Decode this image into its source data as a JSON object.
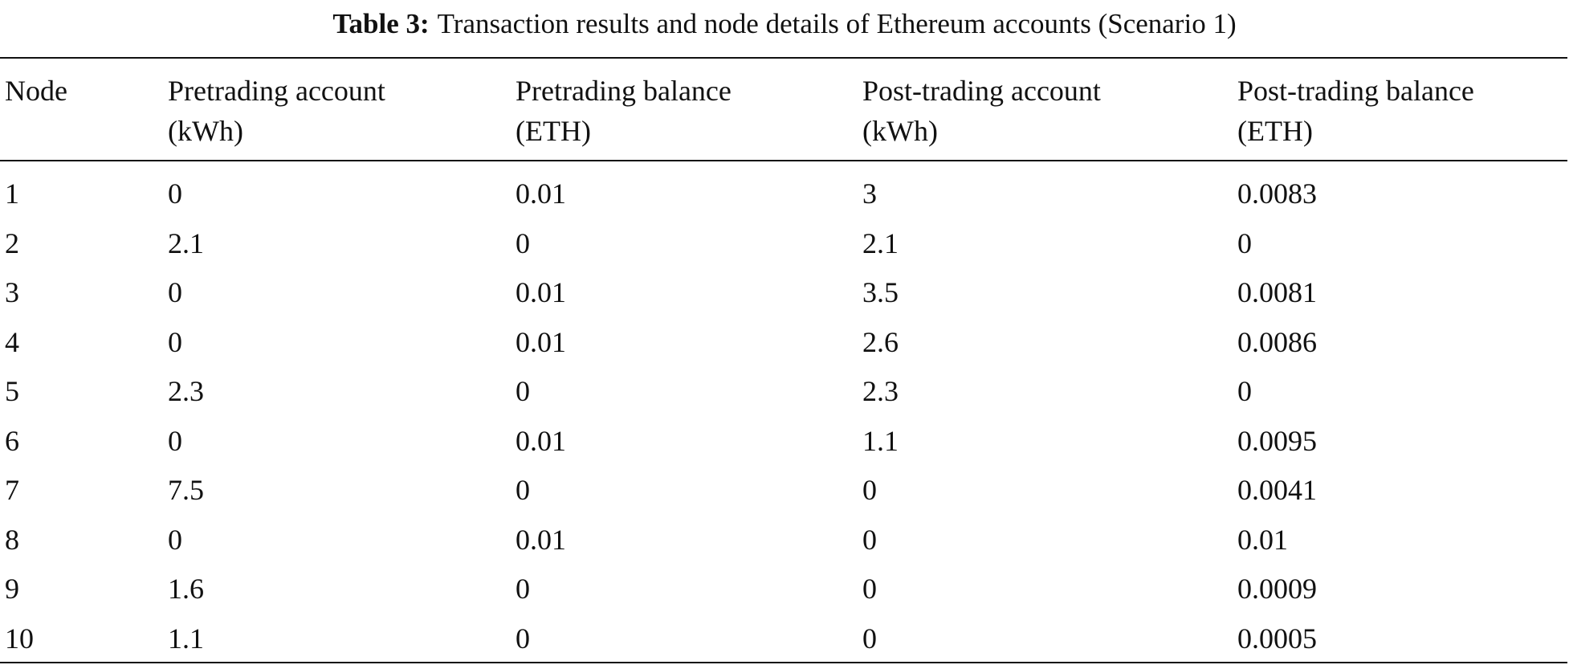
{
  "caption": {
    "label": "Table 3:",
    "text": "Transaction results and node details of Ethereum accounts (Scenario 1)"
  },
  "table": {
    "headers": [
      [
        "Node"
      ],
      [
        "Pretrading account",
        "(kWh)"
      ],
      [
        "Pretrading balance",
        "(ETH)"
      ],
      [
        "Post-trading account",
        "(kWh)"
      ],
      [
        "Post-trading balance",
        "(ETH)"
      ]
    ],
    "rows": [
      [
        "1",
        "0",
        "0.01",
        "3",
        "0.0083"
      ],
      [
        "2",
        "2.1",
        "0",
        "2.1",
        "0"
      ],
      [
        "3",
        "0",
        "0.01",
        "3.5",
        "0.0081"
      ],
      [
        "4",
        "0",
        "0.01",
        "2.6",
        "0.0086"
      ],
      [
        "5",
        "2.3",
        "0",
        "2.3",
        "0"
      ],
      [
        "6",
        "0",
        "0.01",
        "1.1",
        "0.0095"
      ],
      [
        "7",
        "7.5",
        "0",
        "0",
        "0.0041"
      ],
      [
        "8",
        "0",
        "0.01",
        "0",
        "0.01"
      ],
      [
        "9",
        "1.6",
        "0",
        "0",
        "0.0009"
      ],
      [
        "10",
        "1.1",
        "0",
        "0",
        "0.0005"
      ]
    ]
  }
}
